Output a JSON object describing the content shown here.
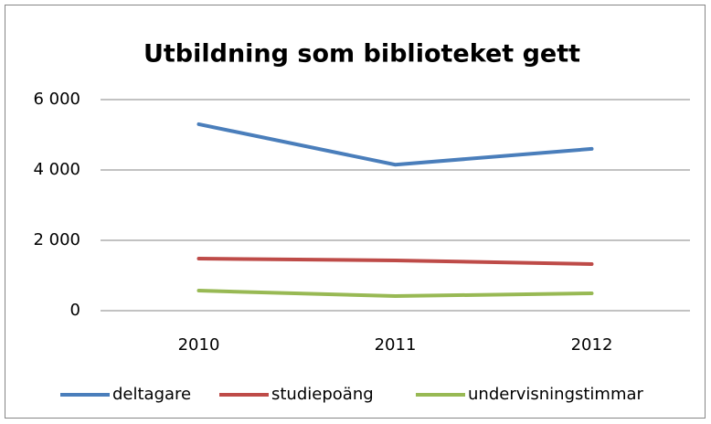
{
  "chart_data": {
    "type": "line",
    "title": "Utbildning som biblioteket gett",
    "categories": [
      "2010",
      "2011",
      "2012"
    ],
    "series": [
      {
        "name": "deltagare",
        "color": "#4a7ebb",
        "values": [
          5300,
          4150,
          4600
        ]
      },
      {
        "name": "studiepoäng",
        "color": "#be4b48",
        "values": [
          1480,
          1430,
          1325
        ]
      },
      {
        "name": "undervisningstimmar",
        "color": "#98b954",
        "values": [
          570,
          415,
          495
        ]
      }
    ],
    "ylim": [
      0,
      6000
    ],
    "yticks": [
      0,
      {
        "value": 2000,
        "label": "2 000"
      },
      {
        "value": 4000,
        "label": "4 000"
      },
      {
        "value": 6000,
        "label": "6 000"
      }
    ],
    "grid": true,
    "legend": "bottom"
  }
}
